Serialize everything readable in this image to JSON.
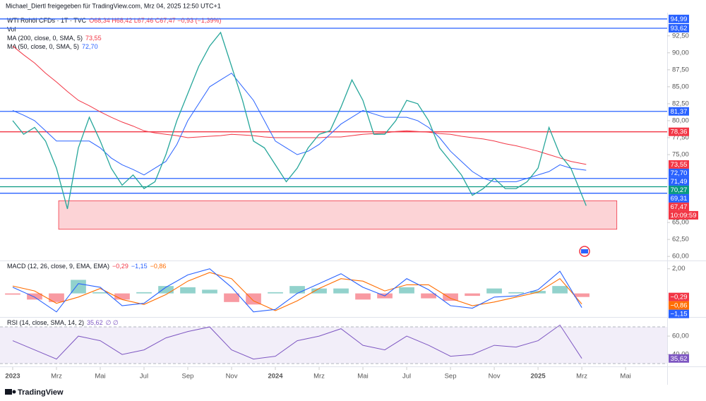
{
  "attribution": "Michael_Diertl freigegeben für TradingView.com, Mrz 04, 2025 12:50 UTC+1",
  "brand": "TradingView",
  "chart_data": [
    {
      "type": "line",
      "title": "WTI Rohöl CFDs · 1T · TVC",
      "ohlc": "O68,34 H68,42 L67,46 C67,47 −0,93 (−1,39%)",
      "volume": "Vol",
      "x": [
        0,
        0.5,
        1,
        1.5,
        2,
        2.5,
        3,
        3.5,
        4,
        4.5,
        5,
        5.5,
        6,
        6.5,
        7,
        7.5,
        8,
        8.5,
        9,
        9.5,
        10,
        10.5,
        11,
        11.5,
        12,
        12.5,
        13,
        13.5,
        14,
        14.5,
        15,
        15.5,
        16,
        16.5,
        17,
        17.5,
        18,
        18.5,
        19,
        19.5,
        20,
        20.5,
        21,
        21.5,
        22,
        22.5,
        23,
        23.5,
        24,
        24.5,
        25,
        25.5,
        26.2
      ],
      "series": [
        {
          "color": "#26a69a",
          "values": [
            80,
            78,
            79,
            77,
            73,
            67,
            76,
            80.5,
            77,
            73,
            70.5,
            72,
            70,
            71,
            75,
            80,
            84,
            88,
            91,
            93,
            88,
            83,
            77,
            76,
            73.5,
            71,
            73,
            76,
            78,
            78.5,
            82,
            86,
            83,
            78,
            78,
            80,
            83,
            82.5,
            80,
            76,
            74,
            72,
            69,
            70,
            71.5,
            70,
            70,
            71,
            73,
            79,
            75,
            73,
            67.47
          ]
        },
        {
          "name": "MA (200, close, 0, SMA, 5)",
          "color": "#f23645",
          "values": [
            91,
            89.7,
            88.5,
            87,
            85.7,
            84.3,
            83,
            82.2,
            81.3,
            80.5,
            79.8,
            79.2,
            78.5,
            78.2,
            78,
            77.8,
            77.5,
            77.6,
            77.7,
            77.8,
            78,
            77.9,
            77.8,
            77.6,
            77.5,
            77.5,
            77.5,
            77.5,
            77.5,
            77.6,
            77.6,
            77.8,
            78,
            78.1,
            78.2,
            78.4,
            78.5,
            78.4,
            78.3,
            78.1,
            78,
            77.7,
            77.5,
            77.3,
            77,
            76.6,
            76.3,
            75.9,
            75.5,
            75,
            74.5,
            74,
            73.55
          ]
        },
        {
          "name": "MA (50, close, 0, SMA, 5)",
          "color": "#2962ff",
          "values": [
            81.5,
            80.8,
            80,
            78.5,
            77,
            77,
            77,
            77,
            76,
            74.5,
            73.5,
            72.8,
            72,
            73,
            74,
            76.5,
            80,
            82.5,
            85,
            86,
            87,
            85,
            83,
            80,
            77,
            76,
            75,
            75.5,
            76.5,
            78,
            79.5,
            80.5,
            81.5,
            81,
            80.5,
            80.5,
            80.5,
            80,
            79,
            77.5,
            75.5,
            74,
            72.5,
            71.5,
            71,
            71,
            71,
            71.5,
            72,
            72.5,
            73.5,
            73,
            72.7
          ]
        }
      ],
      "levels": [
        {
          "value": 94.99,
          "label": "94,99",
          "color": "#2962ff"
        },
        {
          "value": 93.62,
          "label": "93,62",
          "color": "#2962ff"
        },
        {
          "value": 81.37,
          "label": "81,37",
          "color": "#2962ff"
        },
        {
          "value": 78.36,
          "label": "78,36",
          "color": "#f23645"
        },
        {
          "value": 71.49,
          "label": "71,49",
          "color": "#2962ff"
        },
        {
          "value": 70.27,
          "label": "70,27",
          "color": "#089981"
        },
        {
          "value": 69.31,
          "label": "69,31",
          "color": "#2962ff"
        }
      ],
      "markers": [
        {
          "value": 73.55,
          "label": "73,55",
          "color": "#f23645"
        },
        {
          "value": 72.7,
          "label": "72,70",
          "color": "#2962ff"
        },
        {
          "value": 67.47,
          "label": "67,47",
          "color": "#f23645"
        }
      ],
      "countdown": "10:09:59",
      "zone": {
        "xlim": [
          2.1,
          27.6
        ],
        "ylim": [
          64,
          68.2
        ],
        "color": "#f23645"
      },
      "xlim": [
        -0.58,
        29.9
      ],
      "ylim": [
        59.5,
        95.7
      ],
      "yticks": [
        {
          "value": 92.5,
          "label": "92,50"
        },
        {
          "value": 90,
          "label": "90,00"
        },
        {
          "value": 87.5,
          "label": "87,50"
        },
        {
          "value": 85,
          "label": "85,00"
        },
        {
          "value": 82.5,
          "label": "82,50"
        },
        {
          "value": 80,
          "label": "80,00"
        },
        {
          "value": 77.5,
          "label": "77,50"
        },
        {
          "value": 75,
          "label": "75,00"
        },
        {
          "value": 65,
          "label": "65,00"
        },
        {
          "value": 62.5,
          "label": "62,50"
        },
        {
          "value": 60,
          "label": "60,00"
        }
      ],
      "xticks": [
        {
          "value": 0,
          "label": "2023"
        },
        {
          "value": 2,
          "label": "Mrz"
        },
        {
          "value": 4,
          "label": "Mai"
        },
        {
          "value": 6,
          "label": "Jul"
        },
        {
          "value": 8,
          "label": "Sep"
        },
        {
          "value": 10,
          "label": "Nov"
        },
        {
          "value": 12,
          "label": "2024"
        },
        {
          "value": 14,
          "label": "Mrz"
        },
        {
          "value": 16,
          "label": "Mai"
        },
        {
          "value": 18,
          "label": "Jul"
        },
        {
          "value": 20,
          "label": "Sep"
        },
        {
          "value": 22,
          "label": "Nov"
        },
        {
          "value": 24,
          "label": "2025"
        },
        {
          "value": 26,
          "label": "Mrz"
        },
        {
          "value": 28,
          "label": "Mai"
        }
      ]
    },
    {
      "type": "macd",
      "title": "MACD (12, 26, close, 9, EMA, EMA)",
      "x": [
        0,
        1,
        2,
        3,
        4,
        5,
        6,
        7,
        8,
        9,
        10,
        11,
        12,
        13,
        14,
        15,
        16,
        17,
        18,
        19,
        20,
        21,
        22,
        23,
        24,
        25,
        26
      ],
      "series": [
        {
          "color": "#26a69a",
          "values": [
            -0.1,
            -0.5,
            -0.7,
            1.1,
            0.1,
            -0.5,
            0.1,
            0.6,
            0.5,
            0.3,
            -0.7,
            -0.9,
            0.1,
            0.6,
            0.4,
            0.4,
            -0.5,
            -0.4,
            0.5,
            -0.4,
            -0.6,
            -0.2,
            0.4,
            0.1,
            0.2,
            0.6,
            -0.29
          ]
        },
        {
          "color": "#2962ff",
          "values": [
            0.5,
            -0.3,
            -1.5,
            0.8,
            0.5,
            -1,
            -0.8,
            0.5,
            1.5,
            2,
            0.5,
            -1.5,
            -1.3,
            0,
            0.8,
            1.6,
            0.5,
            -0.2,
            1.2,
            0.3,
            -1,
            -1.2,
            -0.3,
            -0.2,
            0.3,
            1.8,
            -1.15
          ]
        },
        {
          "color": "#ff6d00",
          "values": [
            0.6,
            0.2,
            -0.8,
            -0.3,
            0.4,
            -0.5,
            -0.9,
            -0.1,
            1,
            1.7,
            1.2,
            -0.6,
            -1.4,
            -0.6,
            0.4,
            1.2,
            1,
            0.2,
            0.7,
            0.7,
            -0.4,
            -1,
            -0.7,
            -0.3,
            0.1,
            1.2,
            -0.86
          ]
        }
      ],
      "markers": [
        {
          "value": -0.29,
          "label": "−0,29",
          "color": "#f23645"
        },
        {
          "value": -0.86,
          "label": "−0,86",
          "color": "#ff6d00"
        },
        {
          "value": -1.15,
          "label": "−1,15",
          "color": "#2962ff"
        }
      ],
      "ylim": [
        -1.8,
        2.5
      ],
      "yticks": [
        {
          "value": 2,
          "label": "2,00"
        }
      ]
    },
    {
      "type": "rsi",
      "title": "RSI (14, close, SMA, 14, 2)",
      "suffix": "∅ ∅",
      "x": [
        0,
        1,
        2,
        3,
        4,
        5,
        6,
        7,
        8,
        9,
        10,
        11,
        12,
        13,
        14,
        15,
        16,
        17,
        18,
        19,
        20,
        21,
        22,
        23,
        24,
        25,
        26
      ],
      "series": [
        {
          "color": "#7e57c2",
          "values": [
            55,
            45,
            35,
            60,
            55,
            40,
            45,
            58,
            65,
            70,
            45,
            35,
            38,
            55,
            60,
            68,
            50,
            45,
            60,
            50,
            38,
            40,
            50,
            48,
            55,
            72,
            35.62
          ]
        }
      ],
      "band": [
        30,
        70
      ],
      "markers": [
        {
          "value": 35.62,
          "label": "35,62",
          "color": "#7e57c2"
        }
      ],
      "ylim": [
        28.5,
        78.5
      ],
      "yticks": [
        {
          "value": 60,
          "label": "60,00"
        },
        {
          "value": 40,
          "label": "40,00"
        }
      ]
    }
  ]
}
